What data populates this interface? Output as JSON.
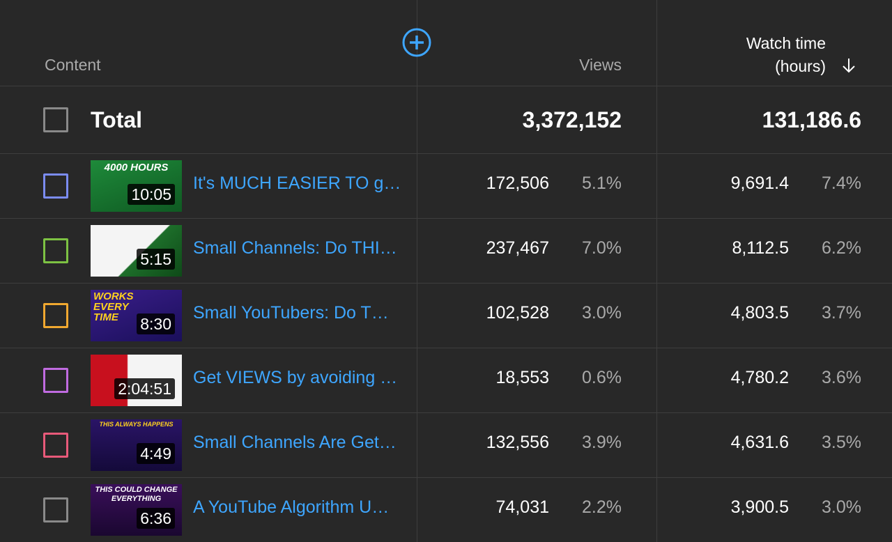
{
  "header": {
    "content_label": "Content",
    "views_label": "Views",
    "watch_label_line1": "Watch time",
    "watch_label_line2": "(hours)"
  },
  "total": {
    "label": "Total",
    "views": "3,372,152",
    "watch": "131,186.6"
  },
  "rows": [
    {
      "title": "It's MUCH EASIER TO g…",
      "duration": "10:05",
      "thumb_caption": "4000 HOURS",
      "views": "172,506",
      "views_pct": "5.1%",
      "watch": "9,691.4",
      "watch_pct": "7.4%",
      "color": "#7b8cf0"
    },
    {
      "title": "Small Channels: Do THI…",
      "duration": "5:15",
      "thumb_caption": "",
      "views": "237,467",
      "views_pct": "7.0%",
      "watch": "8,112.5",
      "watch_pct": "6.2%",
      "color": "#7dc243"
    },
    {
      "title": "Small YouTubers: Do T…",
      "duration": "8:30",
      "thumb_caption": "WORKS EVERY TIME",
      "views": "102,528",
      "views_pct": "3.0%",
      "watch": "4,803.5",
      "watch_pct": "3.7%",
      "color": "#f0a830"
    },
    {
      "title": "Get VIEWS by avoiding …",
      "duration": "2:04:51",
      "thumb_caption": "",
      "views": "18,553",
      "views_pct": "0.6%",
      "watch": "4,780.2",
      "watch_pct": "3.6%",
      "color": "#c06be0"
    },
    {
      "title": "Small Channels Are Get…",
      "duration": "4:49",
      "thumb_caption": "THIS ALWAYS HAPPENS",
      "views": "132,556",
      "views_pct": "3.9%",
      "watch": "4,631.6",
      "watch_pct": "3.5%",
      "color": "#e85a7a"
    },
    {
      "title": "A YouTube Algorithm U…",
      "duration": "6:36",
      "thumb_caption": "THIS COULD CHANGE EVERYTHING",
      "views": "74,031",
      "views_pct": "2.2%",
      "watch": "3,900.5",
      "watch_pct": "3.0%",
      "color": "#8a8a8a"
    }
  ],
  "icons": {
    "add": "plus-circle-icon",
    "sort": "arrow-down-icon"
  },
  "colors": {
    "link": "#3ea6ff",
    "accent": "#3ea6ff",
    "background": "#282828"
  }
}
